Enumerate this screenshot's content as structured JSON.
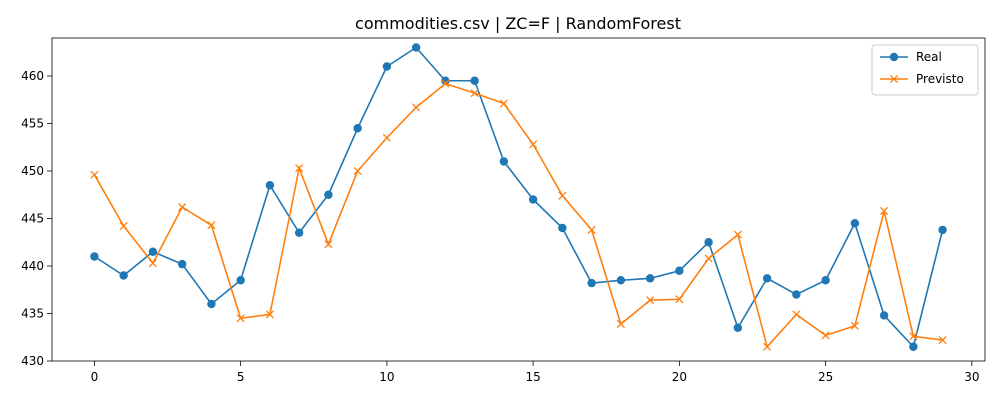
{
  "chart_data": {
    "type": "line",
    "title": "commodities.csv | ZC=F | RandomForest",
    "xlabel": "",
    "ylabel": "",
    "xlim": [
      -1.45,
      30.45
    ],
    "ylim": [
      430,
      464
    ],
    "xticks": [
      0,
      5,
      10,
      15,
      20,
      25,
      30
    ],
    "yticks": [
      430,
      435,
      440,
      445,
      450,
      455,
      460
    ],
    "grid": false,
    "legend_position": "top-right",
    "x": [
      0,
      1,
      2,
      3,
      4,
      5,
      6,
      7,
      8,
      9,
      10,
      11,
      12,
      13,
      14,
      15,
      16,
      17,
      18,
      19,
      20,
      21,
      22,
      23,
      24,
      25,
      26,
      27,
      28,
      29
    ],
    "series": [
      {
        "name": "Real",
        "color": "#1f77b4",
        "marker": "circle",
        "values": [
          441.0,
          439.0,
          441.5,
          440.2,
          436.0,
          438.5,
          448.5,
          443.5,
          447.5,
          454.5,
          461.0,
          463.0,
          459.5,
          459.5,
          451.0,
          447.0,
          444.0,
          438.2,
          438.5,
          438.7,
          439.5,
          442.5,
          433.5,
          438.7,
          437.0,
          438.5,
          444.5,
          434.8,
          431.5,
          443.8
        ]
      },
      {
        "name": "Previsto",
        "color": "#ff7f0e",
        "marker": "x",
        "values": [
          449.6,
          444.2,
          440.3,
          446.2,
          444.3,
          434.5,
          434.9,
          450.3,
          442.3,
          450.0,
          453.5,
          456.7,
          459.2,
          458.2,
          457.1,
          452.8,
          447.4,
          443.8,
          433.9,
          436.4,
          436.5,
          440.8,
          443.3,
          431.5,
          434.9,
          432.7,
          433.7,
          445.8,
          432.6,
          432.2
        ]
      }
    ]
  }
}
